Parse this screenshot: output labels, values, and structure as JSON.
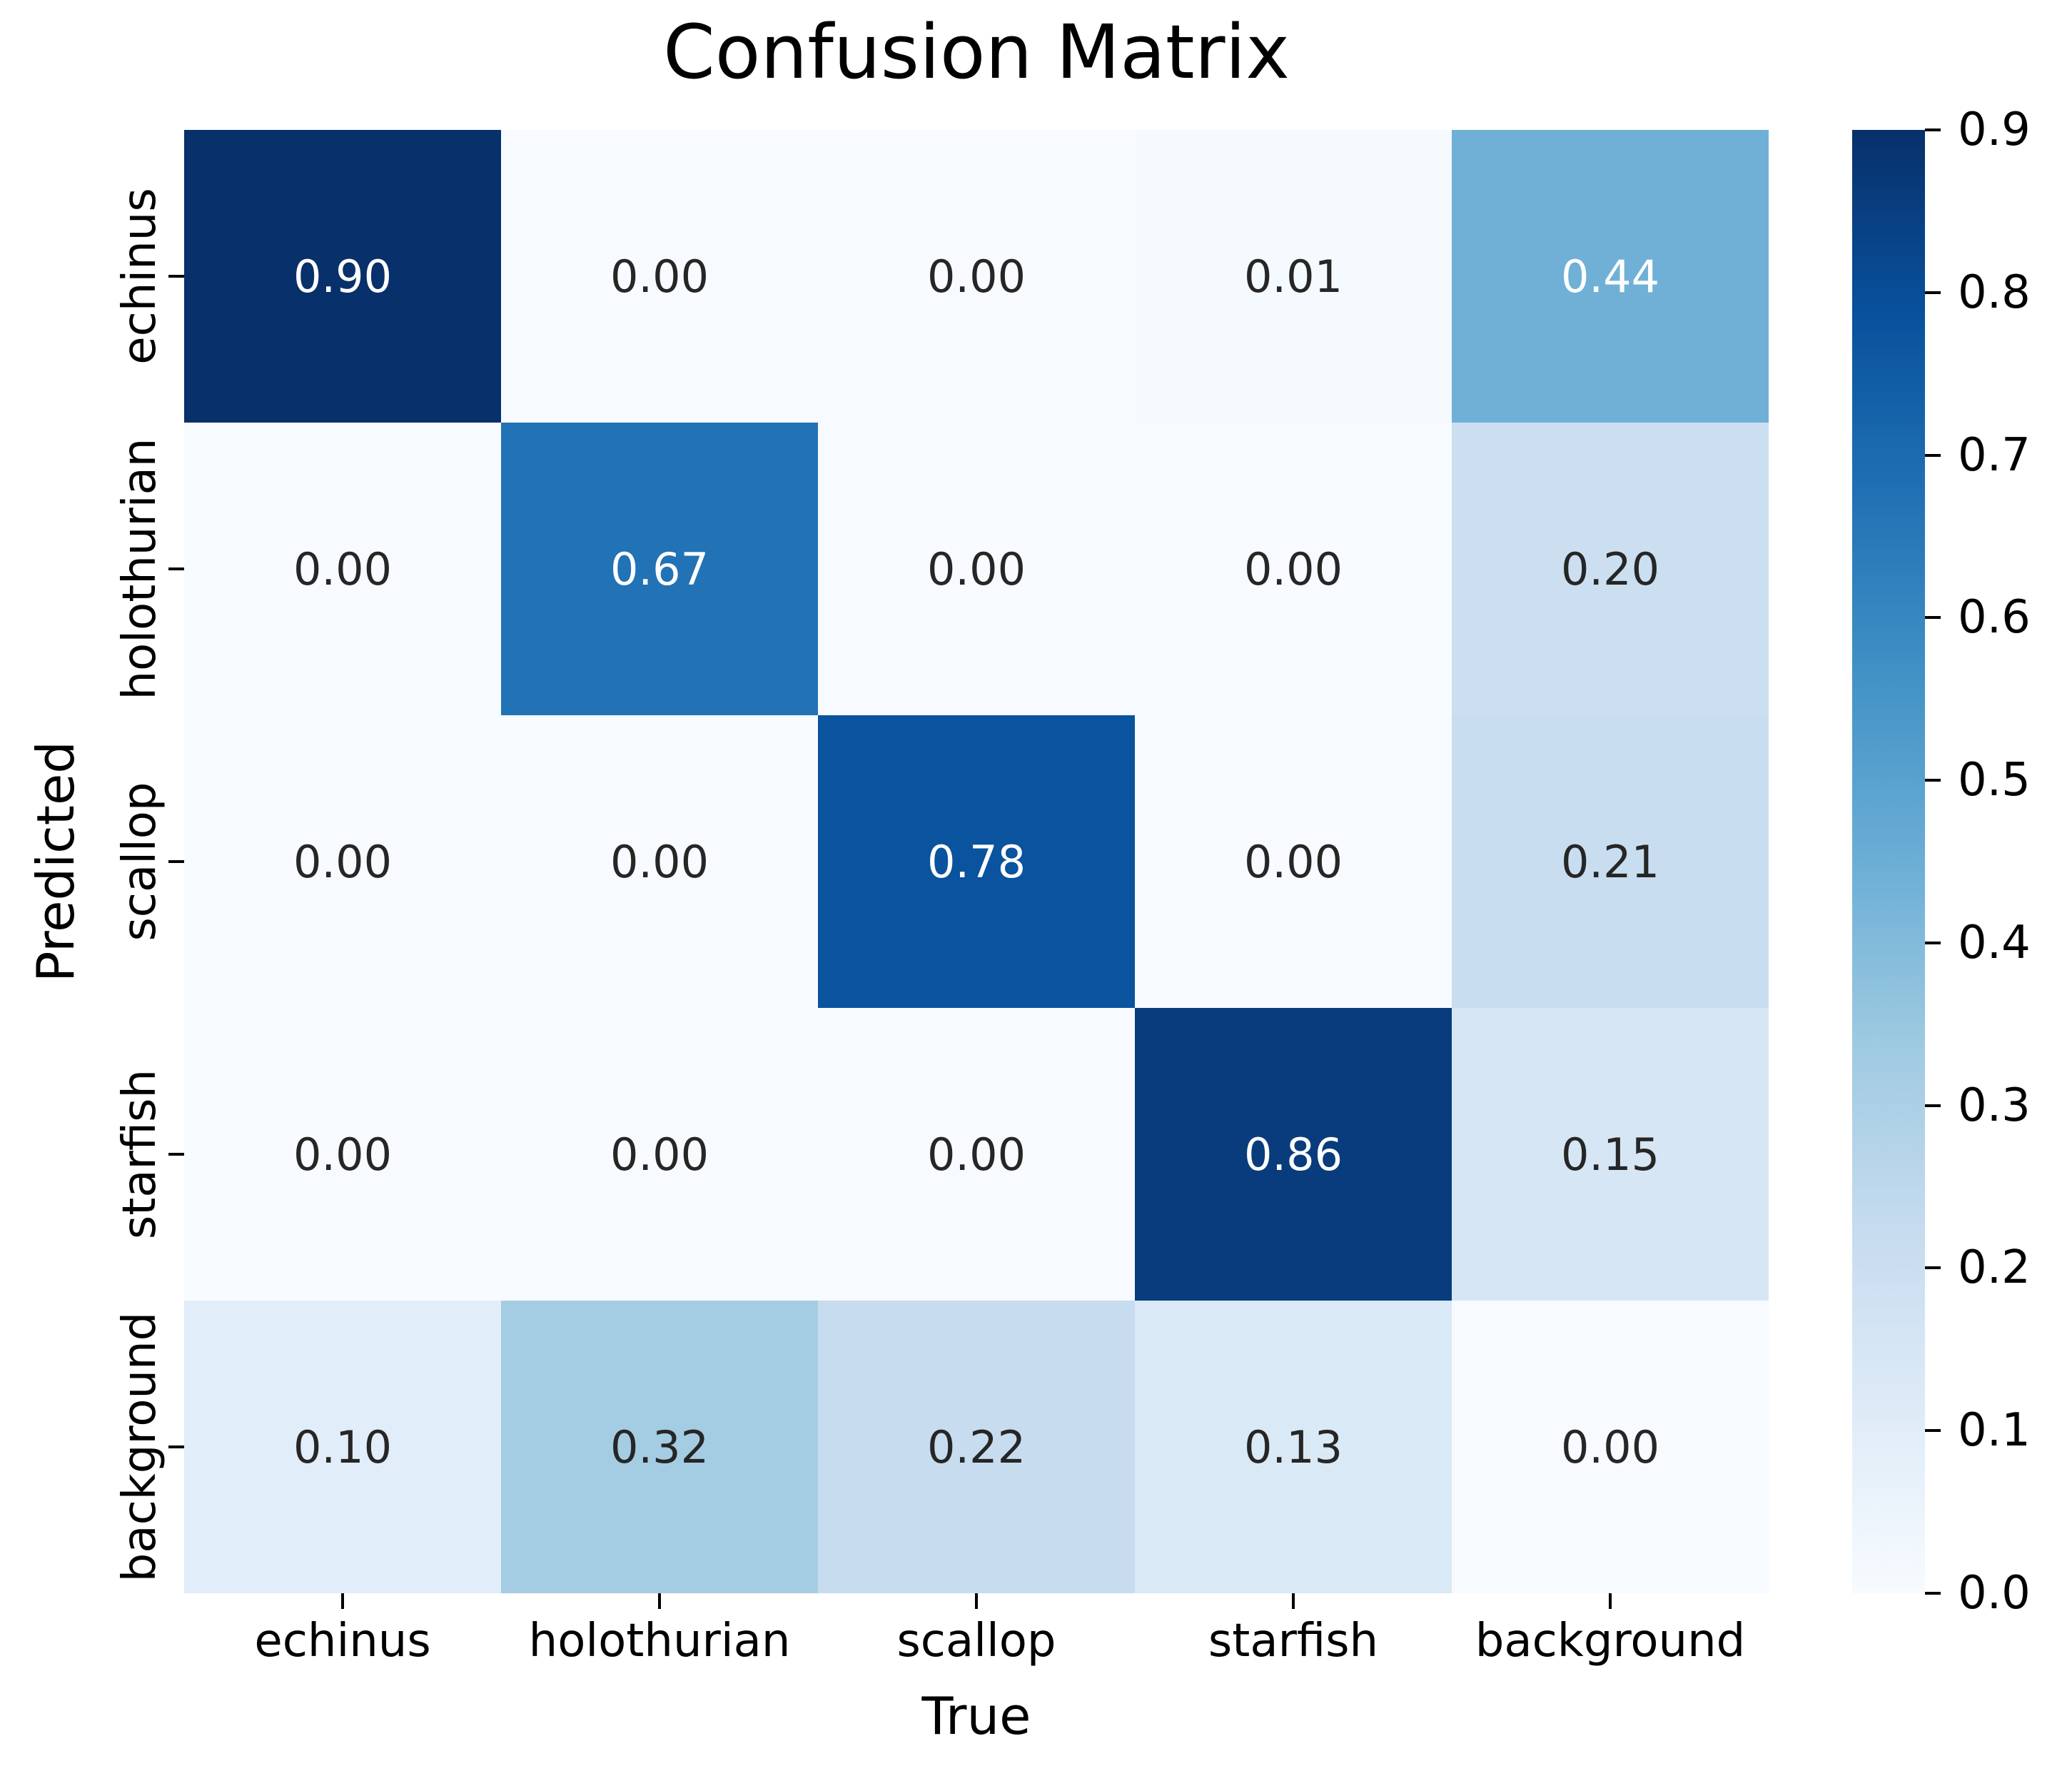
{
  "figure": {
    "background": "#ffffff",
    "text_color": "#000000"
  },
  "chart_data": {
    "type": "heatmap",
    "title": "Confusion Matrix",
    "xlabel": "True",
    "ylabel": "Predicted",
    "x_categories": [
      "echinus",
      "holothurian",
      "scallop",
      "starfish",
      "background"
    ],
    "y_categories": [
      "echinus",
      "holothurian",
      "scallop",
      "starfish",
      "background"
    ],
    "values": [
      [
        0.9,
        0.0,
        0.0,
        0.01,
        0.44
      ],
      [
        0.0,
        0.67,
        0.0,
        0.0,
        0.2
      ],
      [
        0.0,
        0.0,
        0.78,
        0.0,
        0.21
      ],
      [
        0.0,
        0.0,
        0.0,
        0.86,
        0.15
      ],
      [
        0.1,
        0.32,
        0.22,
        0.13,
        0.0
      ]
    ],
    "cell_labels": [
      [
        "0.90",
        "0.00",
        "0.00",
        "0.01",
        "0.44"
      ],
      [
        "0.00",
        "0.67",
        "0.00",
        "0.00",
        "0.20"
      ],
      [
        "0.00",
        "0.00",
        "0.78",
        "0.00",
        "0.21"
      ],
      [
        "0.00",
        "0.00",
        "0.00",
        "0.86",
        "0.15"
      ],
      [
        "0.10",
        "0.32",
        "0.22",
        "0.13",
        "0.00"
      ]
    ],
    "grid": false,
    "legend_position": "right",
    "colorbar": {
      "min": 0.0,
      "max": 0.9,
      "tick_labels": [
        "0.9",
        "0.8",
        "0.7",
        "0.6",
        "0.5",
        "0.4",
        "0.3",
        "0.2",
        "0.1",
        "0.0"
      ]
    },
    "colormap": {
      "name": "Blues",
      "stops": [
        {
          "t": 0.0,
          "color": "#f7fbff"
        },
        {
          "t": 0.125,
          "color": "#deebf7"
        },
        {
          "t": 0.25,
          "color": "#c6dbef"
        },
        {
          "t": 0.375,
          "color": "#9ecae1"
        },
        {
          "t": 0.5,
          "color": "#6baed6"
        },
        {
          "t": 0.625,
          "color": "#4292c6"
        },
        {
          "t": 0.75,
          "color": "#2171b5"
        },
        {
          "t": 0.875,
          "color": "#08519c"
        },
        {
          "t": 1.0,
          "color": "#08306b"
        }
      ]
    },
    "annotation_colors": {
      "light": "#ffffff",
      "dark": "#262626"
    }
  }
}
